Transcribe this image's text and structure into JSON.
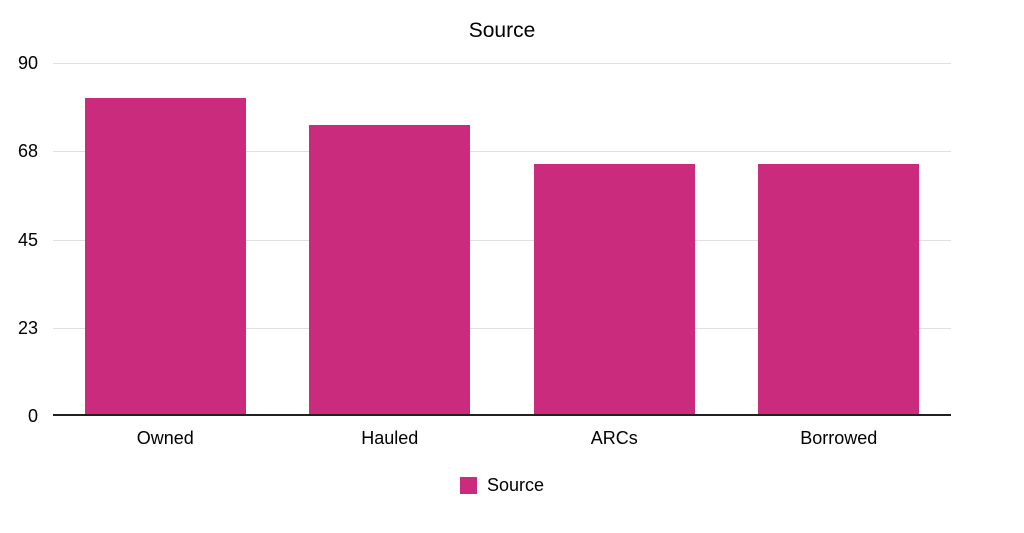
{
  "chart_data": {
    "type": "bar",
    "title": "Source",
    "categories": [
      "Owned",
      "Hauled",
      "ARCs",
      "Borrowed"
    ],
    "series": [
      {
        "name": "Source",
        "values": [
          81,
          74,
          64,
          64
        ]
      }
    ],
    "xlabel": "",
    "ylabel": "",
    "ylim": [
      0,
      90
    ],
    "ytick_labels": [
      "90",
      "68",
      "45",
      "23",
      "0"
    ],
    "grid": true,
    "legend_position": "bottom",
    "colors": {
      "bar": "#CA2B7D",
      "gridline": "#E0E0E0",
      "axis_line": "#212121",
      "text": "#000000",
      "background": "#FFFFFF"
    }
  }
}
